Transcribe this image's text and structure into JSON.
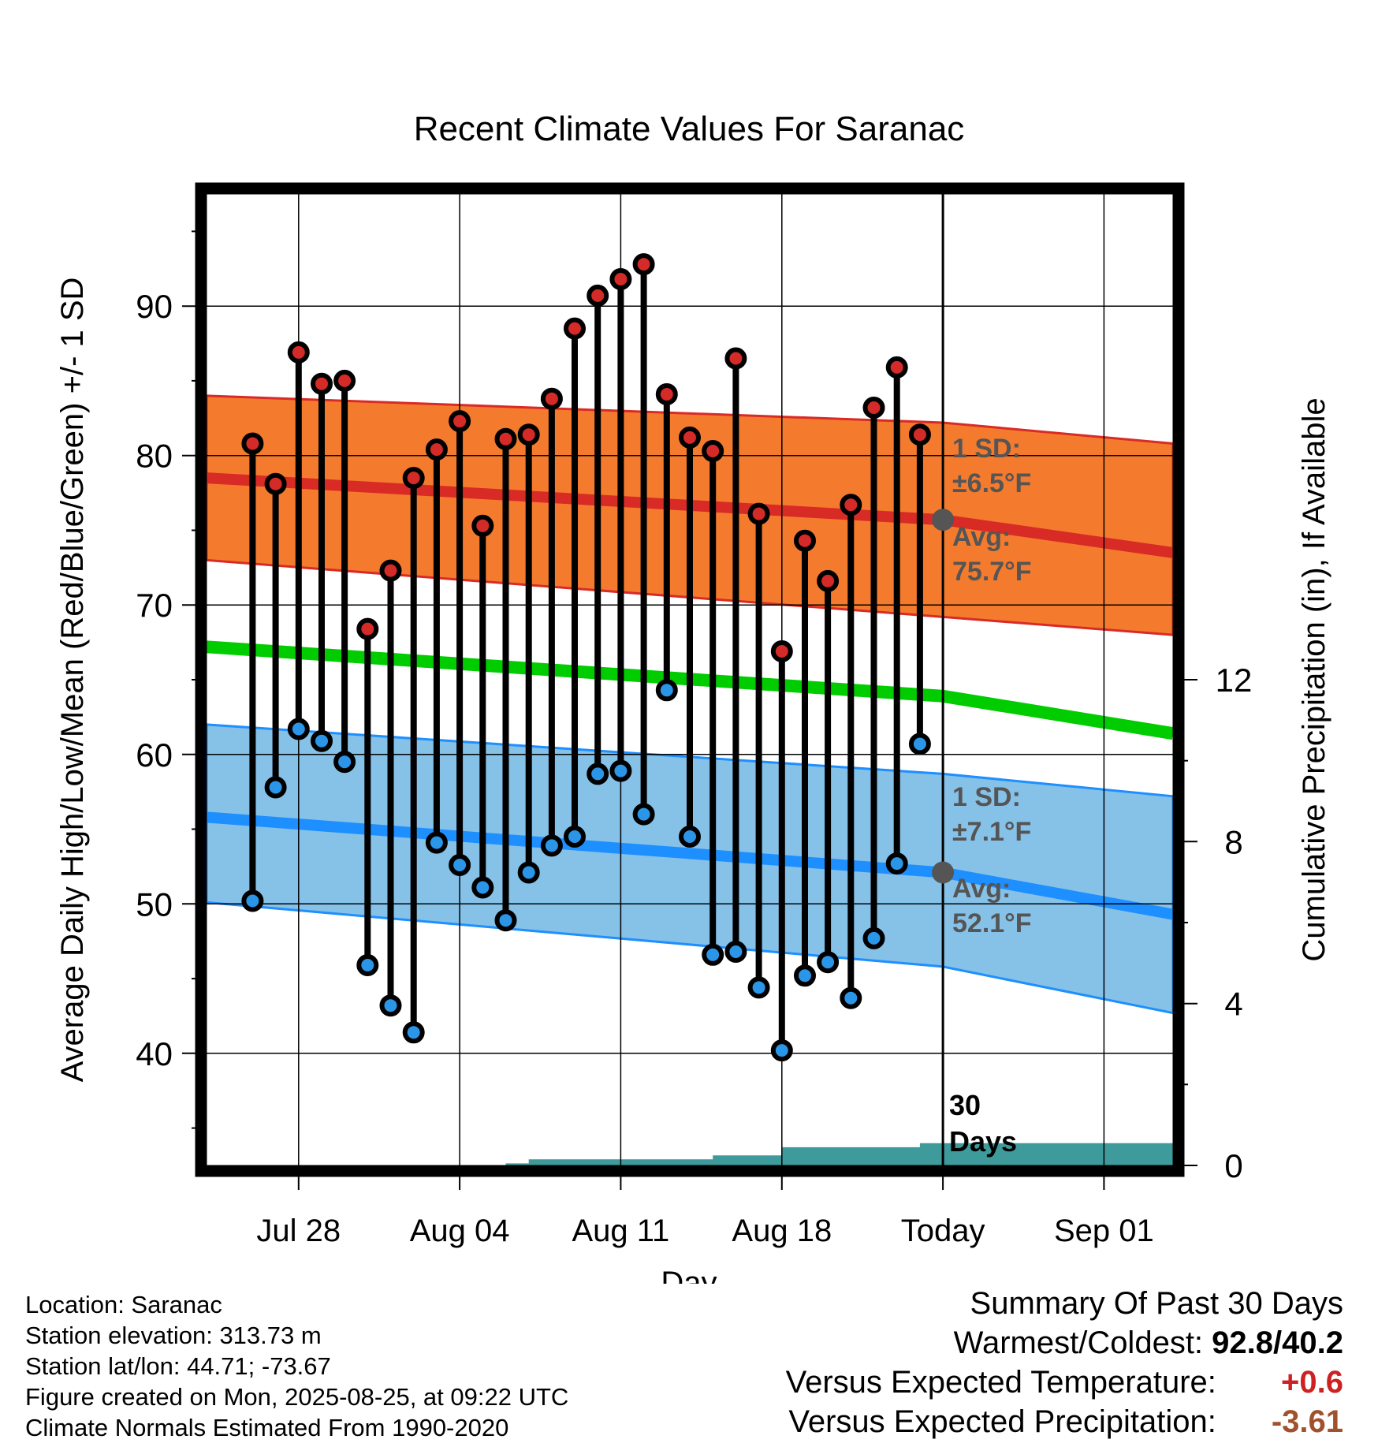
{
  "chart_data": {
    "type": "line",
    "title": "Recent Climate Values For Saranac",
    "xlabel": "Day",
    "ylabel": "Average Daily High/Low/Mean (Red/Blue/Green) +/- 1 SD",
    "y2label": "Cumulative Precipitation (in), If Available",
    "ylim": [
      32.5,
      97.5
    ],
    "y2lim": [
      0,
      24
    ],
    "yticks": [
      "40",
      "50",
      "60",
      "70",
      "80",
      "90"
    ],
    "y2ticks": [
      "0",
      "4",
      "8",
      "12"
    ],
    "x_range_days": [
      "2025-07-24",
      "2025-09-04"
    ],
    "xticks": [
      {
        "date": "2025-07-28",
        "label": "Jul 28"
      },
      {
        "date": "2025-08-04",
        "label": "Aug 04"
      },
      {
        "date": "2025-08-11",
        "label": "Aug 11"
      },
      {
        "date": "2025-08-18",
        "label": "Aug 18"
      },
      {
        "date": "2025-08-25",
        "label": "Today"
      },
      {
        "date": "2025-09-01",
        "label": "Sep 01"
      }
    ],
    "today_date": "2025-08-25",
    "today_label": "30 Days",
    "grid": true,
    "colors": {
      "high_band": "#f47b2e",
      "high_line": "#d92b26",
      "low_band": "#86c1e8",
      "low_line": "#1e8fff",
      "mean_line": "#00cc00",
      "precip": "#3f9a9c",
      "high_dot": "#d42a28",
      "low_dot": "#2b95e8",
      "annotation": "#555555"
    },
    "normals": {
      "dates": [
        "2025-07-24",
        "2025-08-25",
        "2025-09-04"
      ],
      "high_mean": [
        78.5,
        75.7,
        73.5
      ],
      "high_upper": [
        84.0,
        82.2,
        80.8
      ],
      "high_lower": [
        73.0,
        69.2,
        68.0
      ],
      "low_mean": [
        55.8,
        52.1,
        49.3
      ],
      "low_upper": [
        62.0,
        58.7,
        57.2
      ],
      "low_lower": [
        50.1,
        45.8,
        42.7
      ],
      "avg_mean": [
        67.2,
        63.9,
        61.4
      ]
    },
    "annotations": {
      "high_sd": "1 SD:",
      "high_sd_val": "±6.5°F",
      "high_avg": "Avg:",
      "high_avg_val": "75.7°F",
      "low_sd": "1 SD:",
      "low_sd_val": "±7.1°F",
      "low_avg": "Avg:",
      "low_avg_val": "52.1°F"
    },
    "daily": {
      "dates": [
        "2025-07-26",
        "2025-07-27",
        "2025-07-28",
        "2025-07-29",
        "2025-07-30",
        "2025-07-31",
        "2025-08-01",
        "2025-08-02",
        "2025-08-03",
        "2025-08-04",
        "2025-08-05",
        "2025-08-06",
        "2025-08-07",
        "2025-08-08",
        "2025-08-09",
        "2025-08-10",
        "2025-08-11",
        "2025-08-12",
        "2025-08-13",
        "2025-08-14",
        "2025-08-15",
        "2025-08-16",
        "2025-08-17",
        "2025-08-18",
        "2025-08-19",
        "2025-08-20",
        "2025-08-21",
        "2025-08-22",
        "2025-08-23",
        "2025-08-24"
      ],
      "highs": [
        80.8,
        78.1,
        86.9,
        84.8,
        85.0,
        68.4,
        72.3,
        78.5,
        80.4,
        82.3,
        75.3,
        81.1,
        81.4,
        83.8,
        88.5,
        90.7,
        91.8,
        92.8,
        84.1,
        81.2,
        80.3,
        86.5,
        76.1,
        66.9,
        74.3,
        71.6,
        76.7,
        83.2,
        85.9,
        81.4
      ],
      "lows": [
        50.2,
        57.8,
        61.7,
        60.9,
        59.5,
        45.9,
        43.2,
        41.4,
        54.1,
        52.6,
        51.1,
        48.9,
        52.1,
        53.9,
        54.5,
        58.7,
        58.9,
        56.0,
        64.3,
        54.5,
        46.6,
        46.8,
        44.4,
        40.2,
        45.2,
        46.1,
        43.7,
        47.7,
        52.7,
        60.7
      ]
    },
    "precip": {
      "dates": [
        "2025-07-24",
        "2025-08-05",
        "2025-08-06",
        "2025-08-07",
        "2025-08-14",
        "2025-08-15",
        "2025-08-17",
        "2025-08-18",
        "2025-08-23",
        "2025-08-24",
        "2025-09-04"
      ],
      "values": [
        0.0,
        0.0,
        0.05,
        0.15,
        0.15,
        0.25,
        0.25,
        0.45,
        0.45,
        0.55,
        0.55
      ]
    }
  },
  "footer": {
    "location": "Location: Saranac",
    "elevation": "Station elevation: 313.73 m",
    "latlon": "Station lat/lon: 44.71; -73.67",
    "created": "Figure created on Mon, 2025-08-25, at 09:22 UTC",
    "normals": "Climate Normals Estimated From 1990-2020"
  },
  "summary": {
    "title": "Summary Of Past 30 Days",
    "warm_cold_label": "Warmest/Coldest:",
    "warm_cold_value": "92.8/40.2",
    "temp_label": "Versus Expected Temperature:",
    "temp_value": "+0.6",
    "temp_color": "#cc2222",
    "precip_label": "Versus Expected Precipitation:",
    "precip_value": "-3.61",
    "precip_color": "#a0522d"
  }
}
